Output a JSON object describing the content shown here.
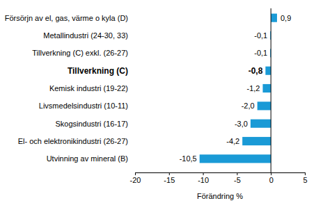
{
  "chart_data": {
    "type": "bar",
    "orientation": "horizontal",
    "x_label": "Förändring %",
    "categories": [
      "Försörjn av el, gas, värme o kyla (D)",
      "Metallindustri (24-30, 33)",
      "Tillverkning (C) exkl. (26-27)",
      "Tillverkning (C)",
      "Kemisk industri (19-22)",
      "Livsmedelsindustri (10-11)",
      "Skogsindustri (16-17)",
      "El- och elektronikindustri (26-27)",
      "Utvinning av mineral (B)"
    ],
    "values": [
      0.9,
      -0.1,
      -0.1,
      -0.8,
      -1.2,
      -2.0,
      -3.0,
      -4.2,
      -10.5
    ],
    "value_labels": [
      "0,9",
      "-0,1",
      "-0,1",
      "-0,8",
      "-1,2",
      "-2,0",
      "-3,0",
      "-4,2",
      "-10,5"
    ],
    "data_labels": true,
    "color": "#1a9ad6",
    "xlim": [
      -20,
      5
    ],
    "xticks": [
      -20,
      -15,
      -10,
      -5,
      0,
      5
    ],
    "grid": false
  }
}
